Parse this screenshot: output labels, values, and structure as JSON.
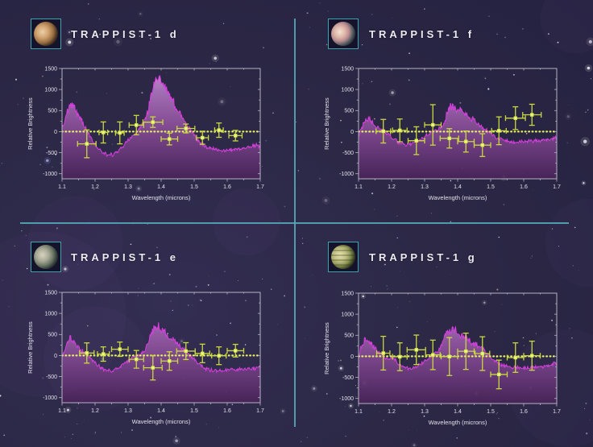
{
  "figure": {
    "background_color": "#2c2846",
    "divider_color": "#54a8b6",
    "icon_border_color": "#3da3ad",
    "axis_color": "#b5b2c2",
    "label_color": "#e2e0ea",
    "icons": [
      {
        "name": "planet-icon-trappist-1-d"
      },
      {
        "name": "planet-icon-trappist-1-f"
      },
      {
        "name": "planet-icon-trappist-1-e"
      },
      {
        "name": "planet-icon-trappist-1-g"
      }
    ]
  },
  "chart_data": [
    {
      "type": "area",
      "title": "TRAPPIST-1 d",
      "xlabel": "Wavelength (microns)",
      "ylabel": "Relative Brightness",
      "xlim": [
        1.1,
        1.7
      ],
      "ylim": [
        -1120,
        1500
      ],
      "x_ticks": [
        1.1,
        1.2,
        1.3,
        1.4,
        1.5,
        1.6,
        1.7
      ],
      "y_ticks": [
        -1000,
        -500,
        0,
        500,
        1000,
        1500
      ],
      "zero_line": 0,
      "grid": false,
      "colors": {
        "spectrum_line": "#d63fdd",
        "points": "#dcec55",
        "error_bars": "#c9d840",
        "zero_line": "#e4f060"
      },
      "spectrum_envelope": {
        "x": [
          1.1,
          1.108,
          1.116,
          1.124,
          1.132,
          1.14,
          1.15,
          1.16,
          1.172,
          1.186,
          1.2,
          1.214,
          1.228,
          1.242,
          1.255,
          1.268,
          1.28,
          1.292,
          1.304,
          1.316,
          1.328,
          1.34,
          1.352,
          1.362,
          1.372,
          1.382,
          1.392,
          1.402,
          1.412,
          1.422,
          1.432,
          1.442,
          1.452,
          1.462,
          1.472,
          1.482,
          1.492,
          1.504,
          1.518,
          1.534,
          1.552,
          1.572,
          1.592,
          1.612,
          1.632,
          1.652,
          1.672,
          1.688,
          1.7
        ],
        "y": [
          60,
          260,
          480,
          660,
          640,
          520,
          390,
          250,
          70,
          -130,
          -300,
          -430,
          -515,
          -555,
          -540,
          -470,
          -385,
          -295,
          -185,
          -85,
          15,
          130,
          300,
          560,
          900,
          1230,
          1290,
          1180,
          1060,
          920,
          780,
          650,
          500,
          360,
          240,
          120,
          -10,
          -140,
          -250,
          -340,
          -400,
          -430,
          -440,
          -430,
          -415,
          -390,
          -360,
          -320,
          -350
        ]
      },
      "points": {
        "x": [
          1.175,
          1.225,
          1.275,
          1.325,
          1.375,
          1.425,
          1.475,
          1.525,
          1.575,
          1.625
        ],
        "y": [
          -290,
          -20,
          -30,
          155,
          225,
          -175,
          75,
          -145,
          35,
          -95
        ],
        "xerr": [
          0.028,
          0.013,
          0.013,
          0.022,
          0.03,
          0.025,
          0.027,
          0.018,
          0.013,
          0.02
        ],
        "yerr": [
          330,
          250,
          260,
          230,
          125,
          140,
          105,
          155,
          170,
          125
        ]
      }
    },
    {
      "type": "area",
      "title": "TRAPPIST-1 f",
      "xlabel": "Wavelength (microns)",
      "ylabel": "Relative Brightness",
      "xlim": [
        1.1,
        1.7
      ],
      "ylim": [
        -1120,
        1500
      ],
      "x_ticks": [
        1.1,
        1.2,
        1.3,
        1.4,
        1.5,
        1.6,
        1.7
      ],
      "y_ticks": [
        -1000,
        -500,
        0,
        500,
        1000,
        1500
      ],
      "zero_line": 0,
      "grid": false,
      "colors": {
        "spectrum_line": "#d63fdd",
        "points": "#dcec55",
        "error_bars": "#c9d840",
        "zero_line": "#e4f060"
      },
      "spectrum_envelope": {
        "x": [
          1.1,
          1.11,
          1.12,
          1.13,
          1.14,
          1.152,
          1.164,
          1.178,
          1.192,
          1.206,
          1.22,
          1.234,
          1.248,
          1.262,
          1.276,
          1.29,
          1.304,
          1.318,
          1.332,
          1.346,
          1.358,
          1.368,
          1.378,
          1.388,
          1.398,
          1.41,
          1.424,
          1.438,
          1.452,
          1.466,
          1.48,
          1.494,
          1.508,
          1.524,
          1.542,
          1.562,
          1.582,
          1.605,
          1.63,
          1.655,
          1.678,
          1.7
        ],
        "y": [
          -80,
          80,
          260,
          330,
          240,
          140,
          70,
          10,
          -70,
          -160,
          -250,
          -300,
          -310,
          -290,
          -250,
          -180,
          -100,
          -30,
          30,
          80,
          160,
          420,
          590,
          600,
          540,
          480,
          400,
          320,
          240,
          160,
          70,
          -20,
          -100,
          -170,
          -210,
          -230,
          -240,
          -240,
          -225,
          -205,
          -175,
          -145
        ]
      },
      "points": {
        "x": [
          1.175,
          1.225,
          1.275,
          1.325,
          1.375,
          1.425,
          1.475,
          1.525,
          1.575,
          1.625
        ],
        "y": [
          10,
          30,
          -215,
          160,
          -160,
          -235,
          -320,
          20,
          320,
          400
        ],
        "xerr": [
          0.022,
          0.022,
          0.025,
          0.025,
          0.028,
          0.025,
          0.025,
          0.022,
          0.03,
          0.028
        ],
        "yerr": [
          280,
          270,
          330,
          480,
          230,
          250,
          270,
          330,
          270,
          250
        ]
      }
    },
    {
      "type": "area",
      "title": "TRAPPIST-1 e",
      "xlabel": "Wavelength (microns)",
      "ylabel": "Relative Brightness",
      "xlim": [
        1.1,
        1.7
      ],
      "ylim": [
        -1120,
        1500
      ],
      "x_ticks": [
        1.1,
        1.2,
        1.3,
        1.4,
        1.5,
        1.6,
        1.7
      ],
      "y_ticks": [
        -1000,
        -500,
        0,
        500,
        1000,
        1500
      ],
      "zero_line": 0,
      "grid": false,
      "colors": {
        "spectrum_line": "#d63fdd",
        "points": "#dcec55",
        "error_bars": "#c9d840",
        "zero_line": "#e4f060"
      },
      "spectrum_envelope": {
        "x": [
          1.1,
          1.108,
          1.116,
          1.124,
          1.134,
          1.144,
          1.156,
          1.17,
          1.184,
          1.198,
          1.212,
          1.226,
          1.24,
          1.254,
          1.268,
          1.282,
          1.296,
          1.31,
          1.324,
          1.338,
          1.35,
          1.36,
          1.37,
          1.38,
          1.39,
          1.402,
          1.416,
          1.43,
          1.444,
          1.458,
          1.472,
          1.486,
          1.5,
          1.514,
          1.53,
          1.548,
          1.568,
          1.59,
          1.615,
          1.64,
          1.665,
          1.685,
          1.7
        ],
        "y": [
          -30,
          150,
          330,
          420,
          350,
          250,
          140,
          40,
          -50,
          -150,
          -250,
          -330,
          -360,
          -345,
          -300,
          -230,
          -150,
          -70,
          -10,
          40,
          110,
          300,
          540,
          680,
          700,
          620,
          530,
          430,
          330,
          220,
          120,
          20,
          -90,
          -200,
          -290,
          -345,
          -360,
          -350,
          -335,
          -320,
          -305,
          -295,
          -290
        ]
      },
      "points": {
        "x": [
          1.175,
          1.225,
          1.275,
          1.325,
          1.375,
          1.425,
          1.475,
          1.525,
          1.575,
          1.625
        ],
        "y": [
          60,
          35,
          150,
          -90,
          -290,
          -130,
          105,
          50,
          -5,
          115
        ],
        "xerr": [
          0.022,
          0.018,
          0.025,
          0.022,
          0.028,
          0.025,
          0.028,
          0.022,
          0.022,
          0.025
        ],
        "yerr": [
          240,
          170,
          170,
          210,
          290,
          220,
          200,
          220,
          210,
          150
        ]
      }
    },
    {
      "type": "area",
      "title": "TRAPPIST-1 g",
      "xlabel": "Wavelength (microns)",
      "ylabel": "Relative Brightness",
      "xlim": [
        1.1,
        1.7
      ],
      "ylim": [
        -1120,
        1500
      ],
      "x_ticks": [
        1.1,
        1.2,
        1.3,
        1.4,
        1.5,
        1.6,
        1.7
      ],
      "y_ticks": [
        -1000,
        -500,
        0,
        500,
        1000,
        1500
      ],
      "zero_line": 0,
      "grid": false,
      "colors": {
        "spectrum_line": "#d63fdd",
        "points": "#dcec55",
        "error_bars": "#c9d840",
        "zero_line": "#e4f060"
      },
      "spectrum_envelope": {
        "x": [
          1.1,
          1.108,
          1.118,
          1.128,
          1.138,
          1.148,
          1.158,
          1.17,
          1.182,
          1.192,
          1.202,
          1.212,
          1.224,
          1.238,
          1.252,
          1.266,
          1.28,
          1.294,
          1.308,
          1.322,
          1.336,
          1.348,
          1.36,
          1.37,
          1.38,
          1.392,
          1.404,
          1.416,
          1.428,
          1.442,
          1.456,
          1.468,
          1.48,
          1.494,
          1.508,
          1.524,
          1.542,
          1.562,
          1.585,
          1.61,
          1.635,
          1.66,
          1.682,
          1.7
        ],
        "y": [
          20,
          200,
          350,
          380,
          300,
          200,
          130,
          60,
          -30,
          -60,
          -20,
          -90,
          -200,
          -270,
          -295,
          -270,
          -210,
          -140,
          -60,
          10,
          90,
          220,
          430,
          560,
          610,
          620,
          560,
          490,
          420,
          330,
          300,
          260,
          150,
          30,
          -90,
          -170,
          -220,
          -250,
          -270,
          -270,
          -255,
          -230,
          -195,
          -160
        ]
      },
      "points": {
        "x": [
          1.175,
          1.225,
          1.275,
          1.325,
          1.375,
          1.425,
          1.475,
          1.525,
          1.575,
          1.625
        ],
        "y": [
          75,
          -10,
          155,
          35,
          -5,
          120,
          65,
          -430,
          -30,
          15
        ],
        "xerr": [
          0.02,
          0.022,
          0.028,
          0.022,
          0.025,
          0.025,
          0.022,
          0.025,
          0.025,
          0.025
        ],
        "yerr": [
          400,
          330,
          350,
          350,
          450,
          430,
          400,
          340,
          350,
          345
        ]
      }
    }
  ]
}
